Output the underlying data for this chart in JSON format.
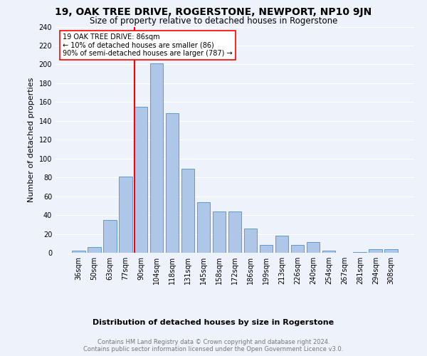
{
  "title": "19, OAK TREE DRIVE, ROGERSTONE, NEWPORT, NP10 9JN",
  "subtitle": "Size of property relative to detached houses in Rogerstone",
  "xlabel": "Distribution of detached houses by size in Rogerstone",
  "ylabel": "Number of detached properties",
  "bar_labels": [
    "36sqm",
    "50sqm",
    "63sqm",
    "77sqm",
    "90sqm",
    "104sqm",
    "118sqm",
    "131sqm",
    "145sqm",
    "158sqm",
    "172sqm",
    "186sqm",
    "199sqm",
    "213sqm",
    "226sqm",
    "240sqm",
    "254sqm",
    "267sqm",
    "281sqm",
    "294sqm",
    "308sqm"
  ],
  "bar_values": [
    2,
    6,
    35,
    81,
    155,
    201,
    148,
    89,
    54,
    44,
    44,
    26,
    8,
    18,
    8,
    11,
    2,
    0,
    1,
    4,
    4
  ],
  "bar_color": "#aec6e8",
  "bar_edge_color": "#5b9bd5",
  "vline_color": "red",
  "annotation_title": "19 OAK TREE DRIVE: 86sqm",
  "annotation_line1": "← 10% of detached houses are smaller (86)",
  "annotation_line2": "90% of semi-detached houses are larger (787) →",
  "annotation_box_color": "white",
  "annotation_box_edge_color": "red",
  "footer_line1": "Contains HM Land Registry data © Crown copyright and database right 2024.",
  "footer_line2": "Contains public sector information licensed under the Open Government Licence v3.0.",
  "ylim": [
    0,
    240
  ],
  "yticks": [
    0,
    20,
    40,
    60,
    80,
    100,
    120,
    140,
    160,
    180,
    200,
    220,
    240
  ],
  "background_color": "#eef2fb",
  "grid_color": "white",
  "title_fontsize": 10,
  "subtitle_fontsize": 8.5,
  "xlabel_fontsize": 8,
  "ylabel_fontsize": 8,
  "tick_fontsize": 7,
  "annotation_fontsize": 7,
  "footer_fontsize": 6
}
